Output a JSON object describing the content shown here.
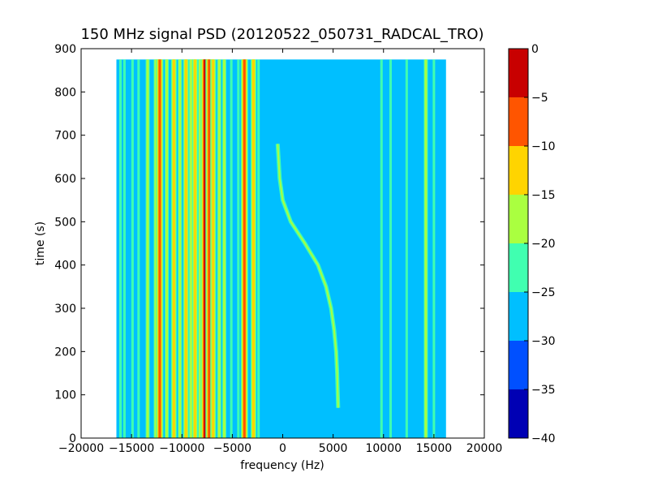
{
  "chart_data": {
    "type": "heatmap",
    "title": "150 MHz signal PSD (20120522_050731_RADCAL_TRO)",
    "xlabel": "frequency (Hz)",
    "ylabel": "time (s)",
    "xlim": [
      -20000,
      20000
    ],
    "ylim": [
      0,
      900
    ],
    "xticks": [
      -20000,
      -15000,
      -10000,
      -5000,
      0,
      5000,
      10000,
      15000,
      20000
    ],
    "yticks": [
      0,
      100,
      200,
      300,
      400,
      500,
      600,
      700,
      800,
      900
    ],
    "data_extent": {
      "x": [
        -16500,
        16200
      ],
      "y": [
        0,
        875
      ]
    },
    "background_level": -27.5,
    "grid": false,
    "colorbar": {
      "levels": [
        -40,
        -35,
        -30,
        -25,
        -20,
        -15,
        -10,
        -5,
        0
      ],
      "tick_labels": [
        "−40",
        "−35",
        "−30",
        "−25",
        "−20",
        "−15",
        "−10",
        "−5",
        "0"
      ],
      "colors": [
        "#0000b4",
        "#0050ff",
        "#00bfff",
        "#40ffb0",
        "#aaff40",
        "#ffd400",
        "#ff5500",
        "#c80000"
      ]
    },
    "vertical_lines": [
      {
        "f": -16100,
        "level": -22.5
      },
      {
        "f": -15700,
        "level": -22.5
      },
      {
        "f": -14900,
        "level": -22.5
      },
      {
        "f": -14300,
        "level": -22.5
      },
      {
        "f": -13400,
        "level": -17.5
      },
      {
        "f": -12600,
        "level": -17.5
      },
      {
        "f": -12200,
        "level": -7.5
      },
      {
        "f": -11500,
        "level": -17.5
      },
      {
        "f": -10800,
        "level": -12.5
      },
      {
        "f": -10200,
        "level": -17.5
      },
      {
        "f": -9600,
        "level": -12.5
      },
      {
        "f": -9100,
        "level": -17.5
      },
      {
        "f": -8700,
        "level": -12.5
      },
      {
        "f": -8200,
        "level": -17.5
      },
      {
        "f": -7700,
        "level": -2.5
      },
      {
        "f": -7300,
        "level": -7.5
      },
      {
        "f": -6900,
        "level": -12.5
      },
      {
        "f": -6300,
        "level": -17.5
      },
      {
        "f": -5800,
        "level": -17.5
      },
      {
        "f": -5100,
        "level": -22.5
      },
      {
        "f": -4400,
        "level": -22.5
      },
      {
        "f": -3800,
        "level": -7.5
      },
      {
        "f": -2900,
        "level": -12.5
      },
      {
        "f": -2400,
        "level": -22.5
      },
      {
        "f": 9800,
        "level": -22.5
      },
      {
        "f": 10700,
        "level": -22.5
      },
      {
        "f": 12300,
        "level": -22.5
      },
      {
        "f": 14200,
        "level": -17.5
      },
      {
        "f": 15000,
        "level": -22.5
      }
    ],
    "sweep_track": {
      "level": -17.5,
      "points": [
        {
          "t": 680,
          "f": -500
        },
        {
          "t": 600,
          "f": -300
        },
        {
          "t": 550,
          "f": 0
        },
        {
          "t": 500,
          "f": 800
        },
        {
          "t": 450,
          "f": 2200
        },
        {
          "t": 400,
          "f": 3500
        },
        {
          "t": 350,
          "f": 4300
        },
        {
          "t": 300,
          "f": 4800
        },
        {
          "t": 250,
          "f": 5100
        },
        {
          "t": 200,
          "f": 5300
        },
        {
          "t": 150,
          "f": 5400
        },
        {
          "t": 70,
          "f": 5500
        }
      ]
    }
  }
}
